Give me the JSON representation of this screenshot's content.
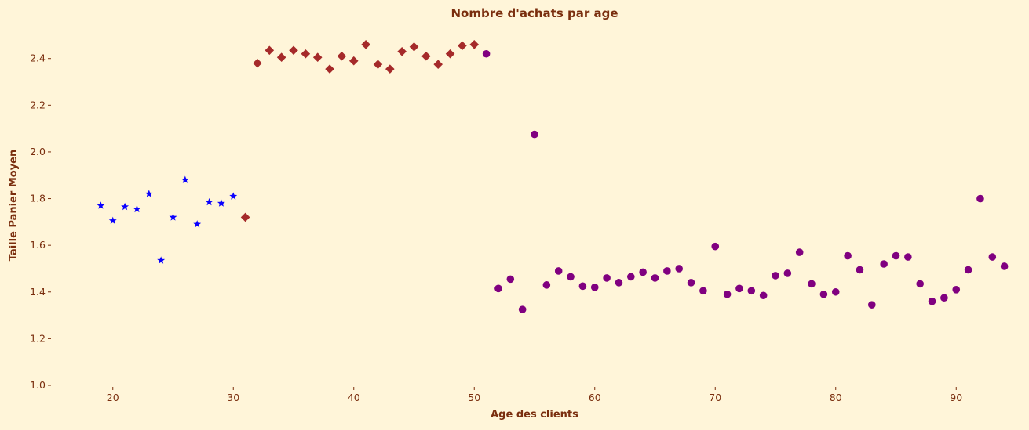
{
  "chart_data": {
    "type": "scatter",
    "title": "Nombre d'achats par age",
    "xlabel": "Age des clients",
    "ylabel": "Taille Panier Moyen",
    "xlim": [
      15,
      95
    ],
    "ylim": [
      1.0,
      2.55
    ],
    "xticks": [
      20,
      30,
      40,
      50,
      60,
      70,
      80,
      90
    ],
    "yticks": [
      1.0,
      1.2,
      1.4,
      1.6,
      1.8,
      2.0,
      2.2,
      2.4
    ],
    "grid": false,
    "colors": {
      "background": "#fff5d9",
      "text": "#7a2e0e"
    },
    "series": [
      {
        "marker": "star",
        "color": "#0a00ff",
        "points": [
          [
            19,
            1.77
          ],
          [
            20,
            1.705
          ],
          [
            21,
            1.765
          ],
          [
            22,
            1.755
          ],
          [
            23,
            1.82
          ],
          [
            24,
            1.535
          ],
          [
            25,
            1.72
          ],
          [
            26,
            1.88
          ],
          [
            27,
            1.69
          ],
          [
            28,
            1.785
          ],
          [
            29,
            1.78
          ],
          [
            30,
            1.81
          ]
        ]
      },
      {
        "marker": "diamond",
        "color": "#a52a2a",
        "points": [
          [
            31,
            1.72
          ],
          [
            32,
            2.38
          ],
          [
            33,
            2.435
          ],
          [
            34,
            2.405
          ],
          [
            35,
            2.435
          ],
          [
            36,
            2.42
          ],
          [
            37,
            2.405
          ],
          [
            38,
            2.355
          ],
          [
            39,
            2.41
          ],
          [
            40,
            2.39
          ],
          [
            41,
            2.46
          ],
          [
            42,
            2.375
          ],
          [
            43,
            2.355
          ],
          [
            44,
            2.43
          ],
          [
            45,
            2.45
          ],
          [
            46,
            2.41
          ],
          [
            47,
            2.375
          ],
          [
            48,
            2.42
          ],
          [
            49,
            2.455
          ],
          [
            50,
            2.46
          ]
        ]
      },
      {
        "marker": "circle",
        "color": "#800080",
        "points": [
          [
            51,
            2.42
          ],
          [
            52,
            1.415
          ],
          [
            53,
            1.455
          ],
          [
            54,
            1.325
          ],
          [
            55,
            2.075
          ],
          [
            56,
            1.43
          ],
          [
            57,
            1.49
          ],
          [
            58,
            1.465
          ],
          [
            59,
            1.425
          ],
          [
            60,
            1.42
          ],
          [
            61,
            1.46
          ],
          [
            62,
            1.44
          ],
          [
            63,
            1.465
          ],
          [
            64,
            1.485
          ],
          [
            65,
            1.46
          ],
          [
            66,
            1.49
          ],
          [
            67,
            1.5
          ],
          [
            68,
            1.44
          ],
          [
            69,
            1.405
          ],
          [
            70,
            1.595
          ],
          [
            71,
            1.39
          ],
          [
            72,
            1.415
          ],
          [
            73,
            1.405
          ],
          [
            74,
            1.385
          ],
          [
            75,
            1.47
          ],
          [
            76,
            1.48
          ],
          [
            77,
            1.57
          ],
          [
            78,
            1.435
          ],
          [
            79,
            1.39
          ],
          [
            80,
            1.4
          ],
          [
            81,
            1.555
          ],
          [
            82,
            1.495
          ],
          [
            83,
            1.345
          ],
          [
            84,
            1.52
          ],
          [
            85,
            1.555
          ],
          [
            86,
            1.55
          ],
          [
            87,
            1.435
          ],
          [
            88,
            1.36
          ],
          [
            89,
            1.375
          ],
          [
            90,
            1.41
          ],
          [
            91,
            1.495
          ],
          [
            92,
            1.8
          ],
          [
            93,
            1.55
          ],
          [
            94,
            1.51
          ]
        ]
      }
    ]
  }
}
